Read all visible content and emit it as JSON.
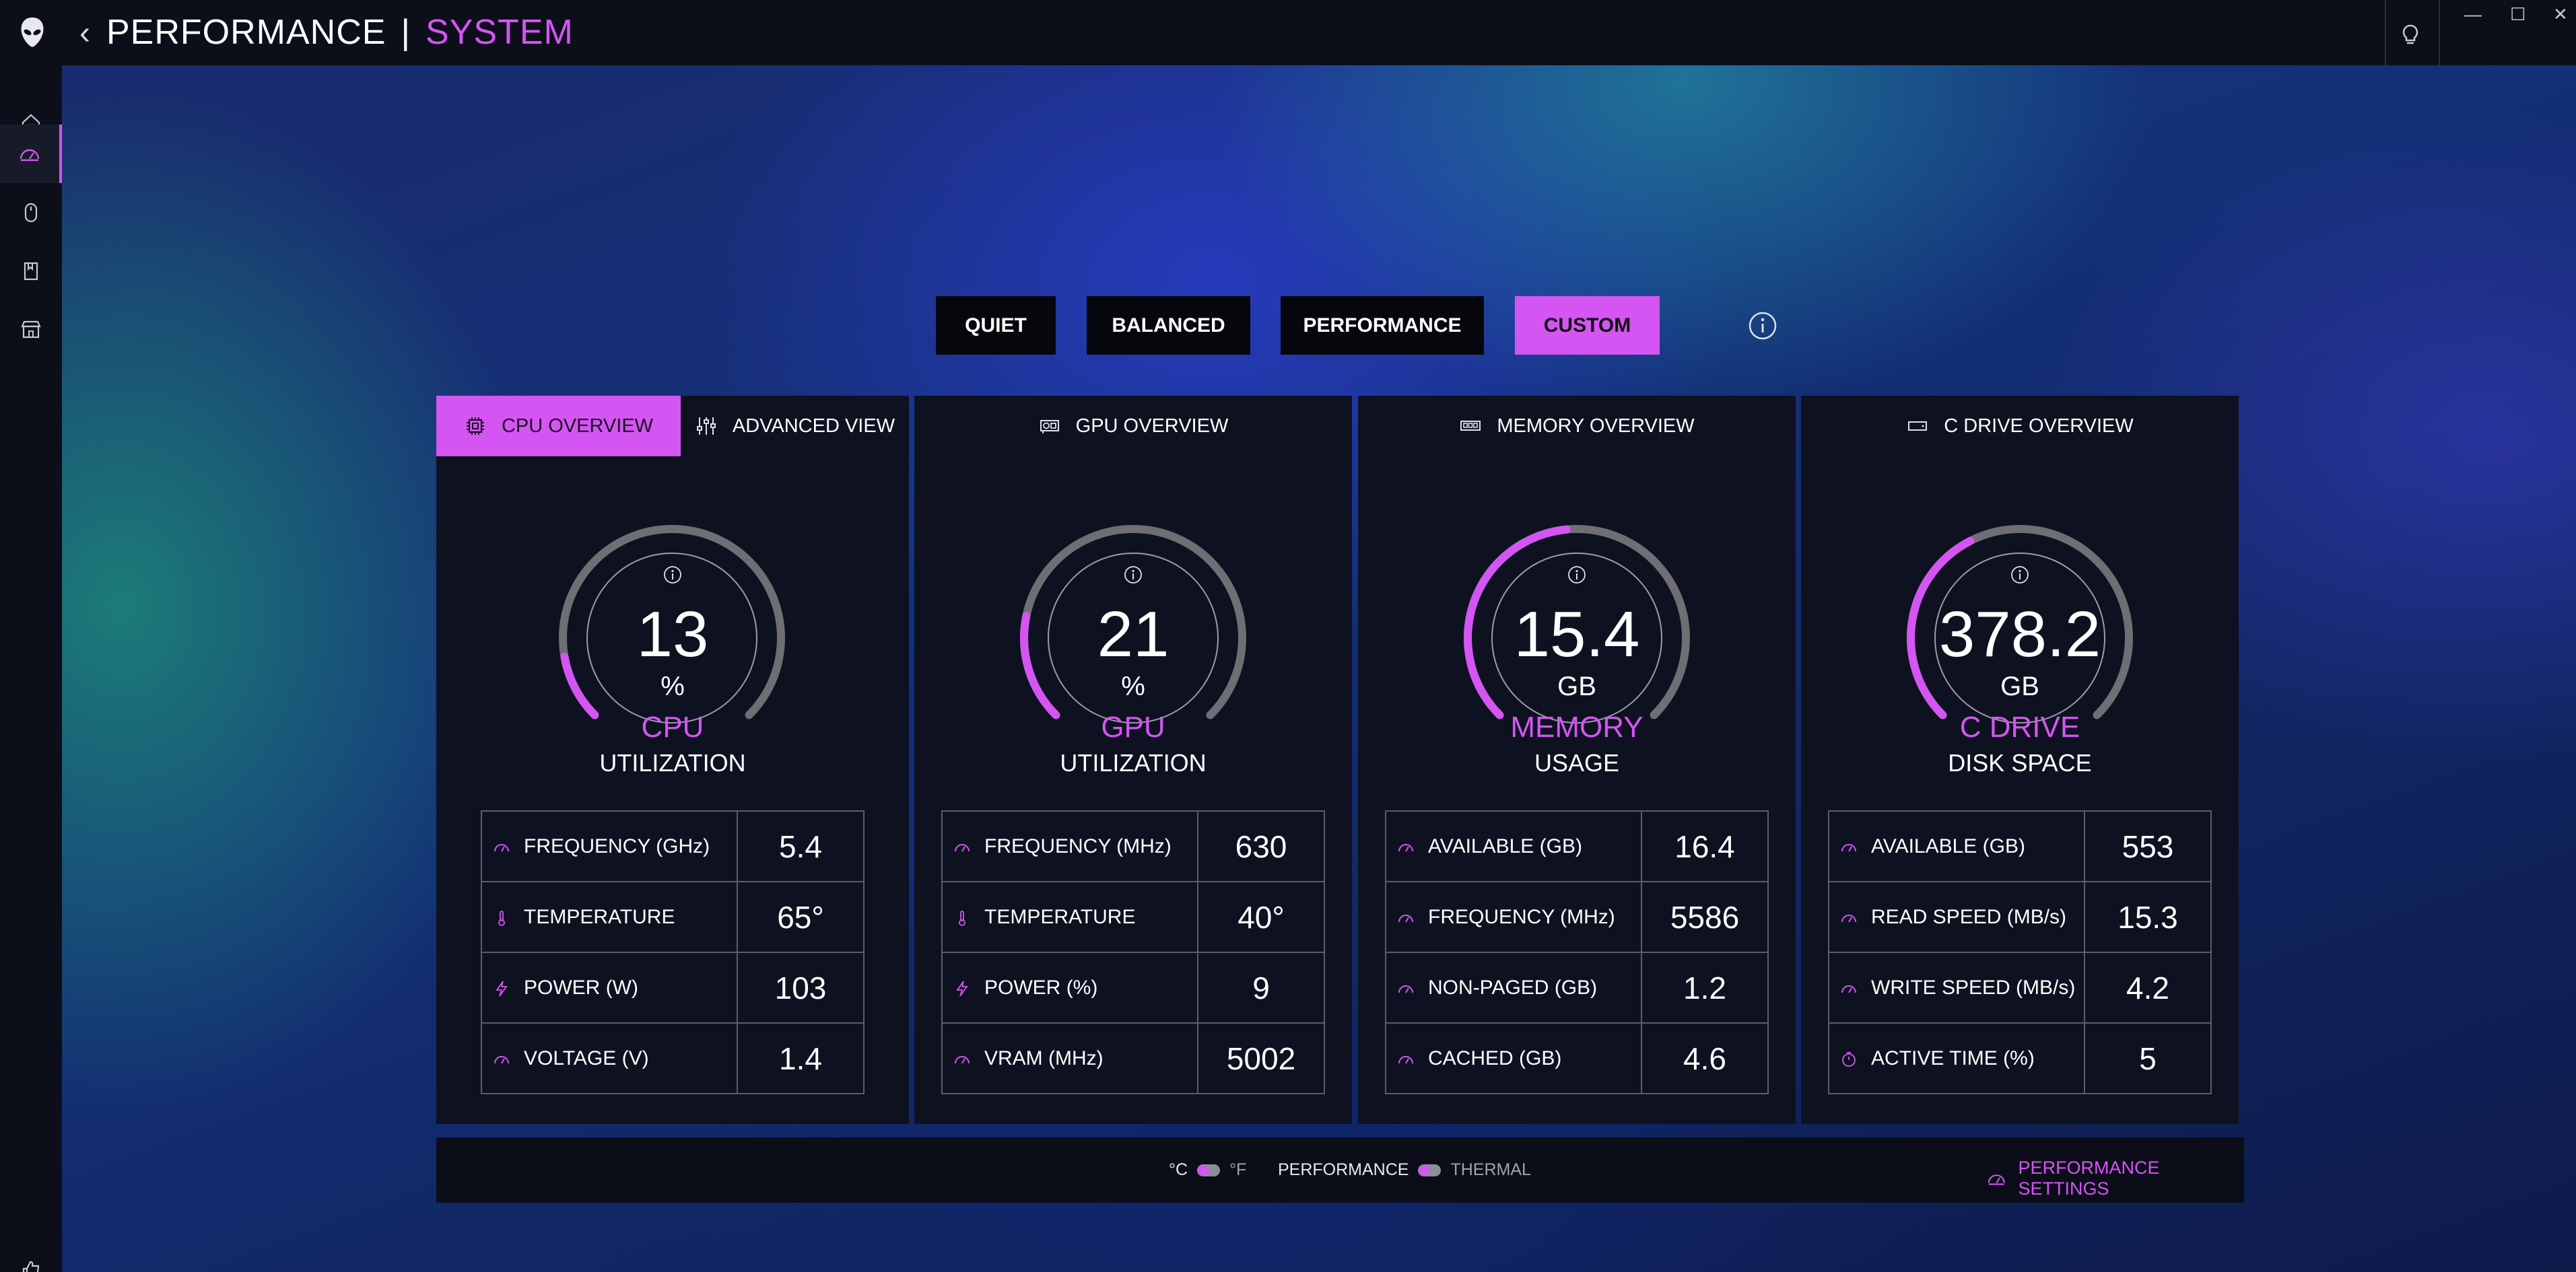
{
  "header": {
    "title_primary": "PERFORMANCE",
    "separator": "|",
    "title_secondary": "SYSTEM",
    "window_controls": [
      "—",
      "☐",
      "✕"
    ]
  },
  "sidebar": {
    "items": [
      {
        "icon": "home-icon",
        "active": false
      },
      {
        "icon": "speedometer-icon",
        "active": true
      },
      {
        "icon": "mouse-icon",
        "active": false
      },
      {
        "icon": "library-icon",
        "active": false
      },
      {
        "icon": "store-icon",
        "active": false
      }
    ]
  },
  "modes": {
    "quiet": "QUIET",
    "balanced": "BALANCED",
    "performance": "PERFORMANCE",
    "custom": "CUSTOM",
    "selected": "custom"
  },
  "panels": {
    "cpu": {
      "tab_overview": "CPU OVERVIEW",
      "tab_advanced": "ADVANCED VIEW",
      "gauge_value": "13",
      "gauge_unit": "%",
      "gauge_title": "CPU",
      "gauge_subtitle": "UTILIZATION",
      "gauge_fraction": 0.13,
      "metrics": [
        {
          "label": "FREQUENCY",
          "unit": "(GHz)",
          "value": "5.4",
          "icon": "gauge-icon"
        },
        {
          "label": "TEMPERATURE",
          "unit": "",
          "value": "65°",
          "icon": "thermometer-icon"
        },
        {
          "label": "POWER",
          "unit": "(W)",
          "value": "103",
          "icon": "lightning-icon"
        },
        {
          "label": "VOLTAGE",
          "unit": "(V)",
          "value": "1.4",
          "icon": "gauge-icon"
        }
      ]
    },
    "gpu": {
      "tab_overview": "GPU OVERVIEW",
      "gauge_value": "21",
      "gauge_unit": "%",
      "gauge_title": "GPU",
      "gauge_subtitle": "UTILIZATION",
      "gauge_fraction": 0.21,
      "metrics": [
        {
          "label": "FREQUENCY",
          "unit": "(MHz)",
          "value": "630",
          "icon": "gauge-icon"
        },
        {
          "label": "TEMPERATURE",
          "unit": "",
          "value": "40°",
          "icon": "thermometer-icon"
        },
        {
          "label": "POWER",
          "unit": "(%)",
          "value": "9",
          "icon": "lightning-icon"
        },
        {
          "label": "VRAM",
          "unit": "(MHz)",
          "value": "5002",
          "icon": "gauge-icon"
        }
      ]
    },
    "memory": {
      "tab_overview": "MEMORY OVERVIEW",
      "gauge_value": "15.4",
      "gauge_unit": "GB",
      "gauge_title": "MEMORY",
      "gauge_subtitle": "USAGE",
      "gauge_fraction": 0.48,
      "metrics": [
        {
          "label": "AVAILABLE",
          "unit": "(GB)",
          "value": "16.4",
          "icon": "gauge-icon"
        },
        {
          "label": "FREQUENCY",
          "unit": "(MHz)",
          "value": "5586",
          "icon": "gauge-icon"
        },
        {
          "label": "NON-PAGED",
          "unit": "(GB)",
          "value": "1.2",
          "icon": "gauge-icon"
        },
        {
          "label": "CACHED",
          "unit": "(GB)",
          "value": "4.6",
          "icon": "gauge-icon"
        }
      ]
    },
    "drive": {
      "tab_overview": "C DRIVE OVERVIEW",
      "gauge_value": "378.2",
      "gauge_unit": "GB",
      "gauge_title": "C DRIVE",
      "gauge_subtitle": "DISK SPACE",
      "gauge_fraction": 0.4,
      "metrics": [
        {
          "label": "AVAILABLE",
          "unit": "(GB)",
          "value": "553",
          "icon": "gauge-icon"
        },
        {
          "label": "READ SPEED",
          "unit": "(MB/s)",
          "value": "15.3",
          "icon": "gauge-icon"
        },
        {
          "label": "WRITE SPEED",
          "unit": "(MB/s)",
          "value": "4.2",
          "icon": "gauge-icon"
        },
        {
          "label": "ACTIVE TIME",
          "unit": "(%)",
          "value": "5",
          "icon": "timer-icon"
        }
      ]
    }
  },
  "footer": {
    "unit_c": "°C",
    "unit_f": "°F",
    "mode_performance": "PERFORMANCE",
    "mode_thermal": "THERMAL",
    "settings_link": "PERFORMANCE SETTINGS"
  },
  "colors": {
    "accent": "#d455f2",
    "panel_bg": "#0e1220",
    "gauge_track": "#6e6e74"
  }
}
